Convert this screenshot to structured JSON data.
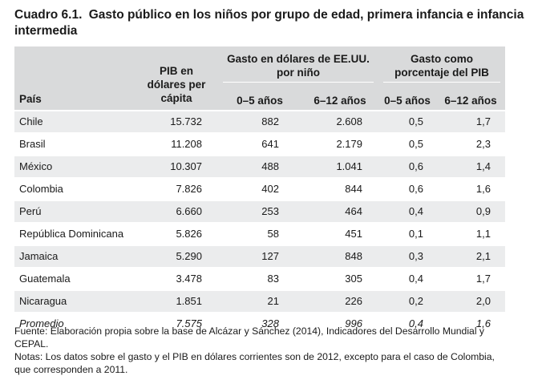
{
  "title": {
    "number": "Cuadro 6.1.",
    "text": "Gasto público en los niños por grupo de edad, primera infancia e infancia intermedia"
  },
  "table": {
    "headers": {
      "pais": "País",
      "pib_line1": "PIB en",
      "pib_line2": "dólares per",
      "pib_line3": "cápita",
      "group1_line1": "Gasto en dólares de EE.UU.",
      "group1_line2": "por niño",
      "group2_line1": "Gasto como",
      "group2_line2": "porcentaje del PIB",
      "sub_0_5": "0–5 años",
      "sub_6_12": "6–12 años"
    },
    "rows": [
      {
        "pais": "Chile",
        "pib": "15.732",
        "n05": "882",
        "n612": "2.608",
        "p05": "0,5",
        "p612": "1,7"
      },
      {
        "pais": "Brasil",
        "pib": "11.208",
        "n05": "641",
        "n612": "2.179",
        "p05": "0,5",
        "p612": "2,3"
      },
      {
        "pais": "México",
        "pib": "10.307",
        "n05": "488",
        "n612": "1.041",
        "p05": "0,6",
        "p612": "1,4"
      },
      {
        "pais": "Colombia",
        "pib": "7.826",
        "n05": "402",
        "n612": "844",
        "p05": "0,6",
        "p612": "1,6"
      },
      {
        "pais": "Perú",
        "pib": "6.660",
        "n05": "253",
        "n612": "464",
        "p05": "0,4",
        "p612": "0,9"
      },
      {
        "pais": "República Dominicana",
        "pib": "5.826",
        "n05": "58",
        "n612": "451",
        "p05": "0,1",
        "p612": "1,1"
      },
      {
        "pais": "Jamaica",
        "pib": "5.290",
        "n05": "127",
        "n612": "848",
        "p05": "0,3",
        "p612": "2,1"
      },
      {
        "pais": "Guatemala",
        "pib": "3.478",
        "n05": "83",
        "n612": "305",
        "p05": "0,4",
        "p612": "1,7"
      },
      {
        "pais": "Nicaragua",
        "pib": "1.851",
        "n05": "21",
        "n612": "226",
        "p05": "0,2",
        "p612": "2,0"
      },
      {
        "pais": "Promedio",
        "pib": "7.575",
        "n05": "328",
        "n612": "996",
        "p05": "0,4",
        "p612": "1,6"
      }
    ]
  },
  "notes": {
    "fuente": "Fuente: Elaboración propia sobre la base de Alcázar y Sánchez (2014), Indicadores del Desarrollo Mundial y CEPAL.",
    "notas": "Notas: Los datos sobre el gasto y el PIB en dólares corrientes son de 2012, excepto para el caso de Colombia, que corresponden a 2011."
  }
}
